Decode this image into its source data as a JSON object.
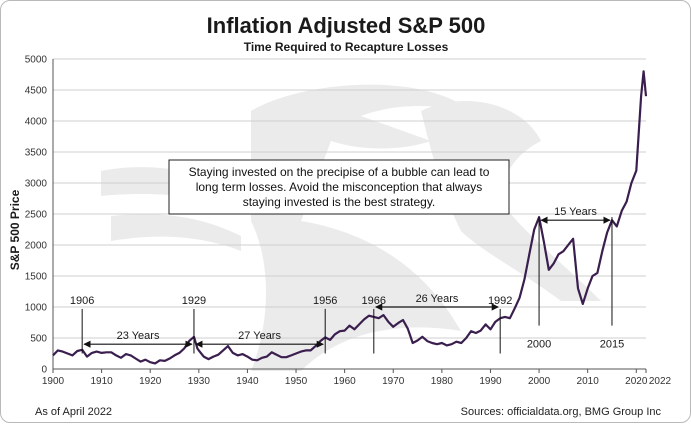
{
  "chart_data": {
    "type": "line",
    "title": "Inflation Adjusted S&P 500",
    "subtitle": "Time Required to Recapture Losses",
    "ylabel": "S&P 500 Price",
    "xlabel": "",
    "xlim": [
      1900,
      2022
    ],
    "ylim": [
      0,
      5000
    ],
    "x_ticks": [
      "1900",
      "1910",
      "1920",
      "1930",
      "1940",
      "1950",
      "1960",
      "1970",
      "1980",
      "1990",
      "2000",
      "2010",
      "2020",
      "2022"
    ],
    "y_ticks": [
      "0",
      "500",
      "1000",
      "1500",
      "2000",
      "2500",
      "3000",
      "3500",
      "4000",
      "4500",
      "5000"
    ],
    "grid": true,
    "line_color": "#3a1e4e",
    "series": [
      {
        "x": [
          1900,
          1901,
          1902,
          1903,
          1904,
          1905,
          1906,
          1907,
          1908,
          1909,
          1910,
          1911,
          1912,
          1913,
          1914,
          1915,
          1916,
          1917,
          1918,
          1919,
          1920,
          1921,
          1922,
          1923,
          1924,
          1925,
          1926,
          1927,
          1928,
          1929,
          1929.7,
          1930,
          1931,
          1932,
          1933,
          1934,
          1935,
          1936,
          1937,
          1938,
          1939,
          1940,
          1941,
          1942,
          1943,
          1944,
          1945,
          1946,
          1947,
          1948,
          1949,
          1950,
          1951,
          1952,
          1953,
          1954,
          1955,
          1956,
          1957,
          1958,
          1959,
          1960,
          1961,
          1962,
          1963,
          1964,
          1965,
          1966,
          1967,
          1968,
          1969,
          1970,
          1971,
          1972,
          1973,
          1974,
          1975,
          1976,
          1977,
          1978,
          1979,
          1980,
          1981,
          1982,
          1983,
          1984,
          1985,
          1986,
          1987,
          1988,
          1989,
          1990,
          1991,
          1992,
          1993,
          1994,
          1995,
          1996,
          1997,
          1998,
          1999,
          2000,
          2001,
          2002,
          2003,
          2004,
          2005,
          2006,
          2007,
          2008,
          2009,
          2010,
          2011,
          2012,
          2013,
          2014,
          2015,
          2016,
          2017,
          2018,
          2019,
          2020,
          2021,
          2021.5,
          2022
        ],
        "values": [
          220,
          300,
          280,
          250,
          220,
          290,
          310,
          200,
          260,
          280,
          260,
          270,
          270,
          220,
          180,
          240,
          220,
          170,
          120,
          150,
          110,
          90,
          140,
          130,
          170,
          220,
          260,
          330,
          450,
          520,
          330,
          300,
          200,
          160,
          200,
          230,
          300,
          370,
          260,
          220,
          240,
          200,
          150,
          140,
          180,
          200,
          270,
          230,
          190,
          190,
          220,
          250,
          280,
          300,
          300,
          370,
          450,
          510,
          470,
          560,
          610,
          620,
          700,
          640,
          720,
          800,
          860,
          840,
          820,
          870,
          760,
          680,
          740,
          790,
          650,
          420,
          460,
          520,
          450,
          420,
          400,
          420,
          380,
          400,
          440,
          420,
          500,
          610,
          580,
          620,
          720,
          640,
          760,
          820,
          840,
          820,
          980,
          1150,
          1450,
          1850,
          2250,
          2450,
          2050,
          1600,
          1700,
          1850,
          1900,
          2000,
          2100,
          1300,
          1050,
          1300,
          1500,
          1550,
          1900,
          2200,
          2400,
          2300,
          2550,
          2700,
          3000,
          3200,
          4400,
          4800,
          4400
        ]
      }
    ],
    "annotations": {
      "years": [
        {
          "label": "1906",
          "x": 1906
        },
        {
          "label": "1929",
          "x": 1929
        },
        {
          "label": "1956",
          "x": 1956
        },
        {
          "label": "1966",
          "x": 1966
        },
        {
          "label": "1992",
          "x": 1992
        },
        {
          "label": "2000",
          "x": 2000
        },
        {
          "label": "2015",
          "x": 2015
        }
      ],
      "spans": [
        {
          "label": "23 Years",
          "x0": 1906,
          "x1": 1929,
          "y": 400
        },
        {
          "label": "27 Years",
          "x0": 1929,
          "x1": 1956,
          "y": 400
        },
        {
          "label": "26 Years",
          "x0": 1966,
          "x1": 1992,
          "y": 1000
        },
        {
          "label": "15 Years",
          "x0": 2000,
          "x1": 2015,
          "y": 2400
        }
      ]
    },
    "note_box": [
      "Staying invested on the precipise of a bubble can lead to",
      "long term losses.  Avoid the misconception that always",
      "staying invested is the best strategy."
    ],
    "footer_left": "As of April 2022",
    "footer_right": "Sources: officialdata.org, BMG Group Inc"
  }
}
